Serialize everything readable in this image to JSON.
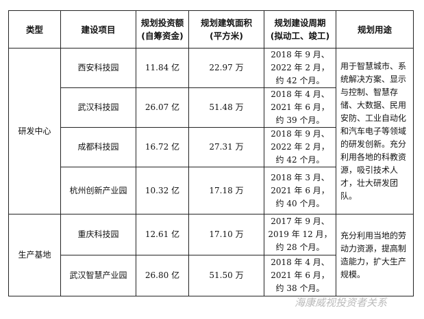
{
  "headers": [
    "类型",
    "建设项目",
    "规划投资额\n(自筹资金)",
    "规划建筑面积\n(平方米)",
    "规划建设周期\n(拟动工、竣工)",
    "规划用途"
  ],
  "groups": [
    {
      "type": "研发中心",
      "use": "用于智慧城市、系统解决方案、显示与控制、智慧存储、大数据、民用安防、工业自动化和汽车电子等领域的研发创新。充分利用各地的科教资源，吸引技术人才，壮大研发团队。",
      "rows": [
        {
          "project": "西安科技园",
          "investment": "11.84 亿",
          "area": "22.97 万",
          "period": "2018 年 9 月、2022 年 2 月，约 42 个月。"
        },
        {
          "project": "武汉科技园",
          "investment": "26.07 亿",
          "area": "51.48 万",
          "period": "2018 年 4 月、2021 年 6 月，约 39 个月。"
        },
        {
          "project": "成都科技园",
          "investment": "16.72 亿",
          "area": "27.31 万",
          "period": "2018 年 9 月、2022 年 2 月，约 42 个月。"
        },
        {
          "project": "杭州创新产业园",
          "investment": "10.32 亿",
          "area": "17.18 万",
          "period": "2018 年 3 月、2021 年 6 月，约 40 个月。"
        }
      ]
    },
    {
      "type": "生产基地",
      "use": "充分利用当地的劳动力资源，提高制造能力，扩大生产规模。",
      "rows": [
        {
          "project": "重庆科技园",
          "investment": "12.61 亿",
          "area": "17.10 万",
          "period": "2017 年 9 月、2019 年 12 月，约 28 个月。"
        },
        {
          "project": "武汉智慧产业园",
          "investment": "26.80 亿",
          "area": "51.50 万",
          "period": "2018 年 4 月、2021 年 6 月，约 38 个月。"
        }
      ]
    }
  ],
  "watermark": "海康威视投资者关系"
}
